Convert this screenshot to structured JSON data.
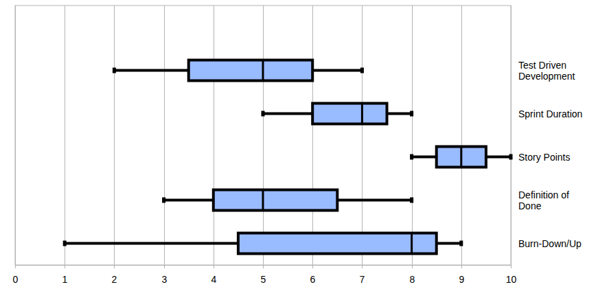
{
  "chart_data": {
    "type": "box",
    "orientation": "horizontal",
    "categories": [
      "Test Driven Development",
      "Sprint Duration",
      "Story Points",
      "Definition of Done",
      "Burn-Down/Up"
    ],
    "min": [
      2,
      5,
      8,
      3,
      1
    ],
    "q1": [
      3.5,
      6,
      8.5,
      4,
      4.5
    ],
    "median": [
      5,
      7,
      9,
      5,
      8
    ],
    "q3": [
      6,
      7.5,
      9.5,
      6.5,
      8.5
    ],
    "max": [
      7,
      8,
      10,
      8,
      9
    ],
    "color": "#99bbff",
    "xlim": [
      0,
      10
    ],
    "xticks": [
      0,
      1,
      2,
      3,
      4,
      5,
      6,
      7,
      8,
      9,
      10
    ],
    "grid": true
  }
}
